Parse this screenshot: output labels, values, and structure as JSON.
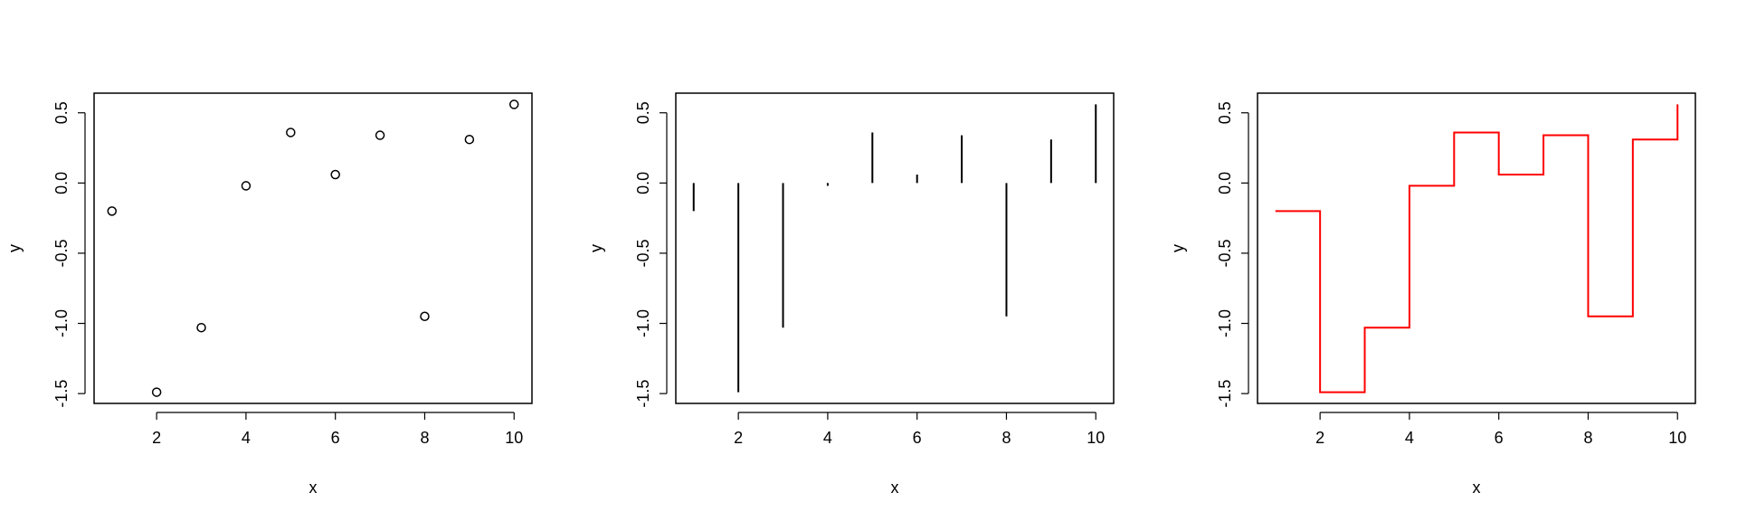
{
  "chart_data": [
    {
      "type": "scatter",
      "xlabel": "x",
      "ylabel": "y",
      "xlim": [
        0.6,
        10.4
      ],
      "ylim": [
        -1.57,
        0.64
      ],
      "x_ticks": [
        2,
        4,
        6,
        8,
        10
      ],
      "y_ticks": [
        -1.5,
        -1.0,
        -0.5,
        0.0,
        0.5
      ],
      "x_tick_labels": [
        "2",
        "4",
        "6",
        "8",
        "10"
      ],
      "y_tick_labels": [
        "-1.5",
        "-1.0",
        "-0.5",
        "0.0",
        "0.5"
      ],
      "grid": false,
      "color": "#000000",
      "x": [
        1,
        2,
        3,
        4,
        5,
        6,
        7,
        8,
        9,
        10
      ],
      "y": [
        -0.2,
        -1.49,
        -1.03,
        -0.02,
        0.36,
        0.06,
        0.34,
        -0.95,
        0.31,
        0.56
      ]
    },
    {
      "type": "histogram-lines",
      "xlabel": "x",
      "ylabel": "y",
      "xlim": [
        0.6,
        10.4
      ],
      "ylim": [
        -1.57,
        0.64
      ],
      "x_ticks": [
        2,
        4,
        6,
        8,
        10
      ],
      "y_ticks": [
        -1.5,
        -1.0,
        -0.5,
        0.0,
        0.5
      ],
      "x_tick_labels": [
        "2",
        "4",
        "6",
        "8",
        "10"
      ],
      "y_tick_labels": [
        "-1.5",
        "-1.0",
        "-0.5",
        "0.0",
        "0.5"
      ],
      "grid": false,
      "color": "#000000",
      "x": [
        1,
        2,
        3,
        4,
        5,
        6,
        7,
        8,
        9,
        10
      ],
      "y": [
        -0.2,
        -1.49,
        -1.03,
        -0.02,
        0.36,
        0.06,
        0.34,
        -0.95,
        0.31,
        0.56
      ]
    },
    {
      "type": "step",
      "xlabel": "x",
      "ylabel": "y",
      "xlim": [
        0.6,
        10.4
      ],
      "ylim": [
        -1.57,
        0.64
      ],
      "x_ticks": [
        2,
        4,
        6,
        8,
        10
      ],
      "y_ticks": [
        -1.5,
        -1.0,
        -0.5,
        0.0,
        0.5
      ],
      "x_tick_labels": [
        "2",
        "4",
        "6",
        "8",
        "10"
      ],
      "y_tick_labels": [
        "-1.5",
        "-1.0",
        "-0.5",
        "0.0",
        "0.5"
      ],
      "grid": false,
      "color": "#ff0000",
      "x": [
        1,
        2,
        3,
        4,
        5,
        6,
        7,
        8,
        9,
        10
      ],
      "y": [
        -0.2,
        -1.49,
        -1.03,
        -0.02,
        0.36,
        0.06,
        0.34,
        -0.95,
        0.31,
        0.56
      ]
    }
  ]
}
